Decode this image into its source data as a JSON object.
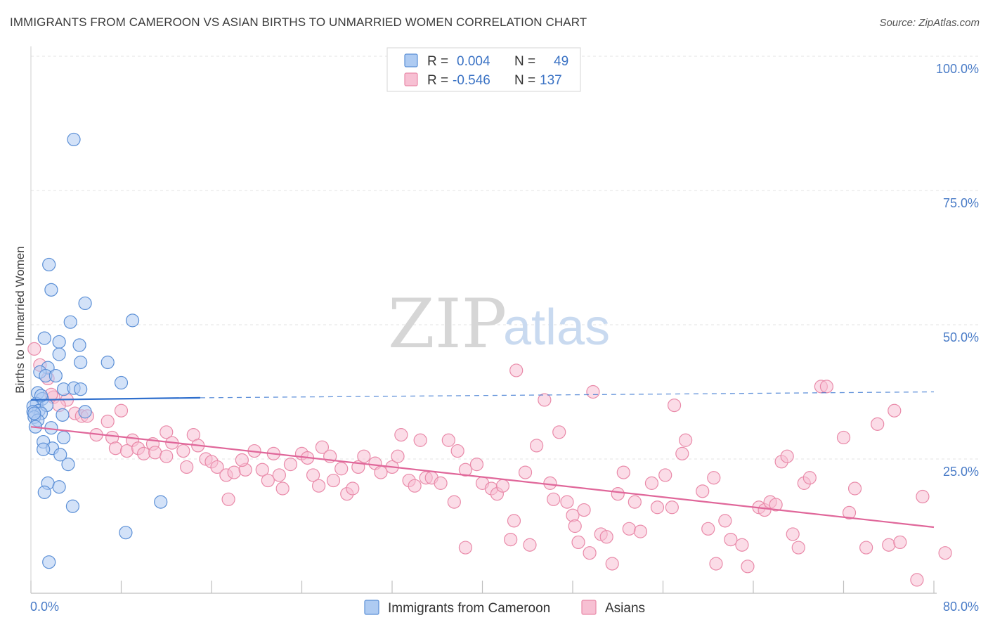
{
  "title": "IMMIGRANTS FROM CAMEROON VS ASIAN BIRTHS TO UNMARRIED WOMEN CORRELATION CHART",
  "source": "Source: ZipAtlas.com",
  "watermark": {
    "zip": "ZIP",
    "atlas": "atlas"
  },
  "chart_data": {
    "type": "scatter",
    "ylabel": "Births to Unmarried Women",
    "xlim": [
      0,
      80
    ],
    "ylim": [
      0,
      100
    ],
    "x_tick_labels": {
      "left": "0.0%",
      "right": "80.0%"
    },
    "y_ticks": [
      {
        "value": 100,
        "label": "100.0%"
      },
      {
        "value": 75,
        "label": "75.0%"
      },
      {
        "value": 50,
        "label": "50.0%"
      },
      {
        "value": 25,
        "label": "25.0%"
      }
    ],
    "grid": true,
    "legend_position": "top-center",
    "colors": {
      "cameroon_fill": "#aecbf2",
      "cameroon_stroke": "#5b8fd6",
      "cameroon_line": "#2f6fcd",
      "asians_fill": "#f7c0d3",
      "asians_stroke": "#e98aa9",
      "asians_line": "#e0679a"
    },
    "legend": [
      {
        "r_label": "R =",
        "r_value": "0.004",
        "n_label": "N =",
        "n_value": "49"
      },
      {
        "r_label": "R =",
        "r_value": "-0.546",
        "n_label": "N =",
        "n_value": "137"
      }
    ],
    "bottom_legend": [
      "Immigrants from Cameroon",
      "Asians"
    ],
    "series": [
      {
        "name": "Immigrants from Cameroon",
        "trend": {
          "solid": [
            [
              0,
              36.0
            ],
            [
              15,
              36.4
            ]
          ],
          "dashed": [
            [
              15,
              36.4
            ],
            [
              80,
              37.5
            ]
          ]
        },
        "points": [
          [
            3.8,
            84.5
          ],
          [
            1.6,
            61.2
          ],
          [
            1.8,
            56.5
          ],
          [
            4.8,
            54.0
          ],
          [
            3.5,
            50.5
          ],
          [
            9.0,
            50.8
          ],
          [
            1.2,
            47.5
          ],
          [
            4.3,
            46.2
          ],
          [
            2.5,
            46.8
          ],
          [
            2.5,
            44.5
          ],
          [
            4.4,
            43.0
          ],
          [
            6.8,
            43.0
          ],
          [
            1.5,
            42.0
          ],
          [
            0.8,
            41.2
          ],
          [
            1.3,
            40.5
          ],
          [
            2.2,
            40.5
          ],
          [
            8.0,
            39.2
          ],
          [
            2.9,
            38.0
          ],
          [
            3.8,
            38.2
          ],
          [
            4.4,
            38.0
          ],
          [
            0.6,
            37.3
          ],
          [
            1.0,
            36.2
          ],
          [
            0.5,
            35.3
          ],
          [
            0.2,
            34.8
          ],
          [
            0.7,
            34.0
          ],
          [
            0.2,
            33.8
          ],
          [
            1.4,
            35.0
          ],
          [
            0.9,
            33.5
          ],
          [
            0.3,
            32.8
          ],
          [
            0.6,
            32.2
          ],
          [
            0.4,
            31.0
          ],
          [
            1.8,
            30.8
          ],
          [
            2.8,
            33.2
          ],
          [
            4.8,
            33.8
          ],
          [
            2.9,
            29.0
          ],
          [
            1.1,
            28.2
          ],
          [
            1.9,
            27.0
          ],
          [
            1.1,
            26.8
          ],
          [
            2.6,
            25.8
          ],
          [
            3.3,
            24.0
          ],
          [
            1.5,
            20.5
          ],
          [
            2.5,
            19.8
          ],
          [
            1.2,
            18.8
          ],
          [
            3.7,
            16.2
          ],
          [
            11.5,
            17.0
          ],
          [
            8.4,
            11.3
          ],
          [
            1.6,
            5.8
          ],
          [
            0.3,
            33.5
          ],
          [
            0.9,
            36.8
          ]
        ]
      },
      {
        "name": "Asians",
        "trend": {
          "solid": [
            [
              0,
              31.0
            ],
            [
              80,
              12.3
            ]
          ]
        },
        "points": [
          [
            0.3,
            45.5
          ],
          [
            0.8,
            42.5
          ],
          [
            1.5,
            40.0
          ],
          [
            2.0,
            36.5
          ],
          [
            3.2,
            36.0
          ],
          [
            2.5,
            35.0
          ],
          [
            8.0,
            34.0
          ],
          [
            3.9,
            33.5
          ],
          [
            4.5,
            33.0
          ],
          [
            5.0,
            33.0
          ],
          [
            6.8,
            32.0
          ],
          [
            12.0,
            30.0
          ],
          [
            14.4,
            29.5
          ],
          [
            5.8,
            29.5
          ],
          [
            7.2,
            29.0
          ],
          [
            9.0,
            28.5
          ],
          [
            10.8,
            27.8
          ],
          [
            12.5,
            28.0
          ],
          [
            7.5,
            27.0
          ],
          [
            8.5,
            26.5
          ],
          [
            9.5,
            27.0
          ],
          [
            10.0,
            26.0
          ],
          [
            11.0,
            26.2
          ],
          [
            12.0,
            25.5
          ],
          [
            13.5,
            26.5
          ],
          [
            14.8,
            27.5
          ],
          [
            15.5,
            25.0
          ],
          [
            16.0,
            24.5
          ],
          [
            13.8,
            23.5
          ],
          [
            16.5,
            23.5
          ],
          [
            17.3,
            22.0
          ],
          [
            18.0,
            22.5
          ],
          [
            19.0,
            23.0
          ],
          [
            17.5,
            17.5
          ],
          [
            18.7,
            24.8
          ],
          [
            19.8,
            26.5
          ],
          [
            20.5,
            23.0
          ],
          [
            21.5,
            26.0
          ],
          [
            22.0,
            22.0
          ],
          [
            23.0,
            24.0
          ],
          [
            24.0,
            26.0
          ],
          [
            21.0,
            21.0
          ],
          [
            22.3,
            19.5
          ],
          [
            24.5,
            25.2
          ],
          [
            25.8,
            27.2
          ],
          [
            26.5,
            25.5
          ],
          [
            25.0,
            22.0
          ],
          [
            25.5,
            20.0
          ],
          [
            26.8,
            21.0
          ],
          [
            27.5,
            23.2
          ],
          [
            28.0,
            18.5
          ],
          [
            28.5,
            19.5
          ],
          [
            29.0,
            23.5
          ],
          [
            29.5,
            25.5
          ],
          [
            30.5,
            24.2
          ],
          [
            31.0,
            22.5
          ],
          [
            32.0,
            23.5
          ],
          [
            32.5,
            25.5
          ],
          [
            32.8,
            29.5
          ],
          [
            33.5,
            21.0
          ],
          [
            34.0,
            20.0
          ],
          [
            34.5,
            28.5
          ],
          [
            35.0,
            21.5
          ],
          [
            35.5,
            21.5
          ],
          [
            36.3,
            20.5
          ],
          [
            37.0,
            28.5
          ],
          [
            37.5,
            17.0
          ],
          [
            37.8,
            26.5
          ],
          [
            38.5,
            23.0
          ],
          [
            38.5,
            8.5
          ],
          [
            39.5,
            24.0
          ],
          [
            40.0,
            20.5
          ],
          [
            40.8,
            19.5
          ],
          [
            41.3,
            18.5
          ],
          [
            41.8,
            20.0
          ],
          [
            43.0,
            41.5
          ],
          [
            42.5,
            10.0
          ],
          [
            42.8,
            13.5
          ],
          [
            43.8,
            22.5
          ],
          [
            44.2,
            9.0
          ],
          [
            44.8,
            27.5
          ],
          [
            45.5,
            36.0
          ],
          [
            46.0,
            20.5
          ],
          [
            46.3,
            17.5
          ],
          [
            46.8,
            30.0
          ],
          [
            47.5,
            17.0
          ],
          [
            48.0,
            14.5
          ],
          [
            48.2,
            12.5
          ],
          [
            48.5,
            9.5
          ],
          [
            49.0,
            15.5
          ],
          [
            49.5,
            7.5
          ],
          [
            49.8,
            37.5
          ],
          [
            50.5,
            11.0
          ],
          [
            51.0,
            10.5
          ],
          [
            51.5,
            5.5
          ],
          [
            52.0,
            18.5
          ],
          [
            52.5,
            22.5
          ],
          [
            53.0,
            12.0
          ],
          [
            53.5,
            17.0
          ],
          [
            54.0,
            11.5
          ],
          [
            55.0,
            20.5
          ],
          [
            55.5,
            16.0
          ],
          [
            56.2,
            22.0
          ],
          [
            56.8,
            16.0
          ],
          [
            57.0,
            35.0
          ],
          [
            57.7,
            26.0
          ],
          [
            58.0,
            28.5
          ],
          [
            59.5,
            19.0
          ],
          [
            60.0,
            12.0
          ],
          [
            60.5,
            21.5
          ],
          [
            60.7,
            5.5
          ],
          [
            61.5,
            13.5
          ],
          [
            62.0,
            10.0
          ],
          [
            63.0,
            9.0
          ],
          [
            63.5,
            5.0
          ],
          [
            64.5,
            16.0
          ],
          [
            65.0,
            15.5
          ],
          [
            65.5,
            17.0
          ],
          [
            66.0,
            16.5
          ],
          [
            66.5,
            24.5
          ],
          [
            67.0,
            25.5
          ],
          [
            67.5,
            11.0
          ],
          [
            68.0,
            8.5
          ],
          [
            68.5,
            20.5
          ],
          [
            69.0,
            21.5
          ],
          [
            70.0,
            38.5
          ],
          [
            70.5,
            38.5
          ],
          [
            72.0,
            29.0
          ],
          [
            72.5,
            15.0
          ],
          [
            73.0,
            19.5
          ],
          [
            74.0,
            8.5
          ],
          [
            75.0,
            31.5
          ],
          [
            76.0,
            9.0
          ],
          [
            76.5,
            34.0
          ],
          [
            77.0,
            9.5
          ],
          [
            79.0,
            18.0
          ],
          [
            78.5,
            2.5
          ],
          [
            81.0,
            7.5
          ],
          [
            1.8,
            37.0
          ]
        ]
      }
    ]
  }
}
